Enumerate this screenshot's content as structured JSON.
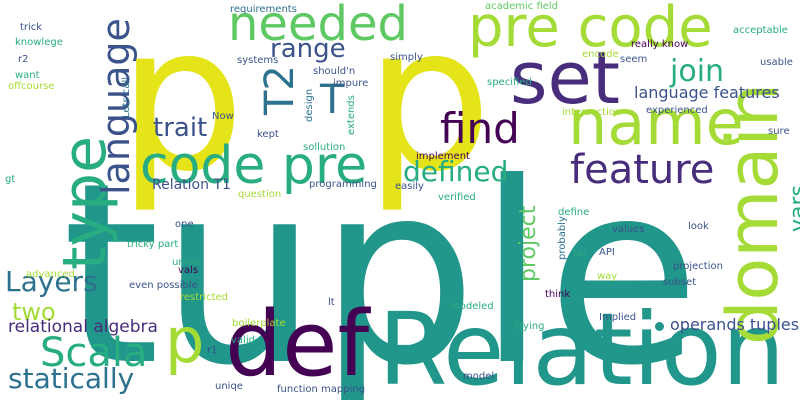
{
  "palette": {
    "yellow": "#e4e419",
    "teal": "#21968b",
    "lightgreen": "#5ec962",
    "yellowgreen": "#a5db36",
    "blue": "#3b528b",
    "purple": "#472d7b",
    "darkpurple": "#440154",
    "midblue": "#2c718e",
    "green": "#27ad81",
    "lime": "#d8e219"
  },
  "words": [
    {
      "text": "tuple",
      "color": "teal"
    },
    {
      "text": "p",
      "color": "yellow"
    },
    {
      "text": "p",
      "color": "yellow"
    },
    {
      "text": "Relation",
      "color": "teal"
    },
    {
      "text": "domain",
      "color": "yellowgreen"
    },
    {
      "text": "def",
      "color": "darkpurple"
    },
    {
      "text": "name",
      "color": "yellowgreen"
    },
    {
      "text": "set",
      "color": "purple"
    },
    {
      "text": "type",
      "color": "green"
    },
    {
      "text": "code pre",
      "color": "green"
    },
    {
      "text": "pre code",
      "color": "yellowgreen"
    },
    {
      "text": "needed",
      "color": "lightgreen"
    },
    {
      "text": "language",
      "color": "blue"
    },
    {
      "text": "find",
      "color": "darkpurple"
    },
    {
      "text": "feature",
      "color": "purple"
    },
    {
      "text": "T2",
      "color": "midblue"
    },
    {
      "text": "T",
      "color": "midblue"
    },
    {
      "text": "p",
      "color": "yellowgreen"
    },
    {
      "text": "Scala",
      "color": "green"
    },
    {
      "text": "statically",
      "color": "midblue"
    },
    {
      "text": "Layers",
      "color": "midblue"
    },
    {
      "text": "defined",
      "color": "green"
    },
    {
      "text": "join",
      "color": "green"
    },
    {
      "text": "range",
      "color": "blue"
    },
    {
      "text": "trait",
      "color": "blue"
    },
    {
      "text": "project",
      "color": "lightgreen"
    },
    {
      "text": "vars",
      "color": "green"
    },
    {
      "text": "two",
      "color": "yellowgreen"
    },
    {
      "text": "relational algebra",
      "color": "purple"
    },
    {
      "text": "language features",
      "color": "blue"
    },
    {
      "text": "operands tuples",
      "color": "blue"
    },
    {
      "text": "Relation T1",
      "color": "blue"
    },
    {
      "text": "requirements",
      "color": "midblue"
    },
    {
      "text": "academic field",
      "color": "lightgreen"
    },
    {
      "text": "trick",
      "color": "blue"
    },
    {
      "text": "knowlege",
      "color": "green"
    },
    {
      "text": "r2",
      "color": "blue"
    },
    {
      "text": "want",
      "color": "green"
    },
    {
      "text": "offcourse",
      "color": "yellowgreen"
    },
    {
      "text": "systems",
      "color": "blue"
    },
    {
      "text": "should'n",
      "color": "blue"
    },
    {
      "text": "impure",
      "color": "blue"
    },
    {
      "text": "simply",
      "color": "blue"
    },
    {
      "text": "specified",
      "color": "green"
    },
    {
      "text": "encode",
      "color": "yellowgreen"
    },
    {
      "text": "seem",
      "color": "blue"
    },
    {
      "text": "really know",
      "color": "darkpurple"
    },
    {
      "text": "acceptable",
      "color": "green"
    },
    {
      "text": "usable",
      "color": "blue"
    },
    {
      "text": "experienced",
      "color": "blue"
    },
    {
      "text": "intersection",
      "color": "yellowgreen"
    },
    {
      "text": "sure",
      "color": "blue"
    },
    {
      "text": "Lets call",
      "color": "midblue"
    },
    {
      "text": "Now",
      "color": "blue"
    },
    {
      "text": "kept",
      "color": "blue"
    },
    {
      "text": "design",
      "color": "midblue"
    },
    {
      "text": "extends",
      "color": "green"
    },
    {
      "text": "sollution",
      "color": "green"
    },
    {
      "text": "implement",
      "color": "darkpurple"
    },
    {
      "text": "gt",
      "color": "green"
    },
    {
      "text": "question",
      "color": "yellowgreen"
    },
    {
      "text": "programming",
      "color": "blue"
    },
    {
      "text": "easily",
      "color": "blue"
    },
    {
      "text": "verified",
      "color": "green"
    },
    {
      "text": "define",
      "color": "green"
    },
    {
      "text": "values",
      "color": "blue"
    },
    {
      "text": "one",
      "color": "blue"
    },
    {
      "text": "tricky part",
      "color": "green"
    },
    {
      "text": "union",
      "color": "green"
    },
    {
      "text": "look",
      "color": "blue"
    },
    {
      "text": "far",
      "color": "green"
    },
    {
      "text": "API",
      "color": "blue"
    },
    {
      "text": "probably",
      "color": "midblue"
    },
    {
      "text": "advanced",
      "color": "yellowgreen"
    },
    {
      "text": "even possible",
      "color": "blue"
    },
    {
      "text": "vals",
      "color": "darkpurple"
    },
    {
      "text": "restricted",
      "color": "yellowgreen"
    },
    {
      "text": "modeled",
      "color": "green"
    },
    {
      "text": "way",
      "color": "yellowgreen"
    },
    {
      "text": "projection",
      "color": "blue"
    },
    {
      "text": "subset",
      "color": "blue"
    },
    {
      "text": "think",
      "color": "darkpurple"
    },
    {
      "text": "lt",
      "color": "blue"
    },
    {
      "text": "boilerplate",
      "color": "yellowgreen"
    },
    {
      "text": "Implied",
      "color": "blue"
    },
    {
      "text": "trying",
      "color": "green"
    },
    {
      "text": "r1",
      "color": "blue"
    },
    {
      "text": "valid",
      "color": "green"
    },
    {
      "text": "uniqe",
      "color": "blue"
    },
    {
      "text": "function mapping",
      "color": "blue"
    },
    {
      "text": "model",
      "color": "blue"
    }
  ]
}
